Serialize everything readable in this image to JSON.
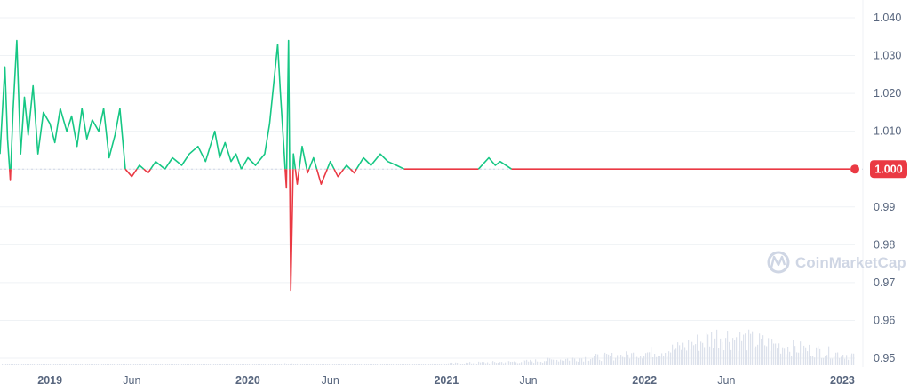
{
  "chart_data": {
    "type": "line",
    "title": "",
    "xlabel": "",
    "ylabel": "",
    "baseline": 1.0,
    "ylim": [
      0.948,
      1.042
    ],
    "y_ticks": [
      "1.040",
      "1.030",
      "1.020",
      "1.010",
      "1.000",
      "0.99",
      "0.98",
      "0.97",
      "0.96",
      "0.95"
    ],
    "y_tick_values": [
      1.04,
      1.03,
      1.02,
      1.01,
      1.0,
      0.99,
      0.98,
      0.97,
      0.96,
      0.95
    ],
    "x_ticks": [
      {
        "label": "2019",
        "date": "2019-01-01",
        "major": true
      },
      {
        "label": "Jun",
        "date": "2019-06-01",
        "major": false
      },
      {
        "label": "2020",
        "date": "2020-01-01",
        "major": true
      },
      {
        "label": "Jun",
        "date": "2020-06-01",
        "major": false
      },
      {
        "label": "2021",
        "date": "2021-01-01",
        "major": true
      },
      {
        "label": "Jun",
        "date": "2021-06-01",
        "major": false
      },
      {
        "label": "2022",
        "date": "2022-01-01",
        "major": true
      },
      {
        "label": "Jun",
        "date": "2022-06-01",
        "major": false
      },
      {
        "label": "2023",
        "date": "2023-01-01",
        "major": true
      }
    ],
    "current_price": "1.000",
    "colors": {
      "above": "#16c784",
      "below": "#ea3943",
      "volume": "#dde2ec",
      "axis_text": "#58667e"
    },
    "series": [
      {
        "x": [
          "2018-10-01",
          "2018-10-10",
          "2018-10-15",
          "2018-10-20",
          "2018-10-25",
          "2018-11-01",
          "2018-11-08",
          "2018-11-15",
          "2018-11-22",
          "2018-12-01",
          "2018-12-10",
          "2018-12-20",
          "2019-01-01",
          "2019-01-10",
          "2019-01-20",
          "2019-02-01",
          "2019-02-10",
          "2019-02-20",
          "2019-03-01",
          "2019-03-10",
          "2019-03-20",
          "2019-04-01",
          "2019-04-10",
          "2019-04-20",
          "2019-05-01",
          "2019-05-10",
          "2019-05-20",
          "2019-06-01",
          "2019-06-15",
          "2019-07-01",
          "2019-07-15",
          "2019-08-01",
          "2019-08-15",
          "2019-09-01",
          "2019-09-15",
          "2019-10-01",
          "2019-10-15",
          "2019-11-01",
          "2019-11-10",
          "2019-11-20",
          "2019-12-01",
          "2019-12-10",
          "2019-12-20",
          "2020-01-01",
          "2020-01-15",
          "2020-02-01",
          "2020-02-10",
          "2020-02-20",
          "2020-02-25",
          "2020-03-01",
          "2020-03-08",
          "2020-03-12",
          "2020-03-16",
          "2020-03-20",
          "2020-03-25",
          "2020-04-01",
          "2020-04-10",
          "2020-04-20",
          "2020-05-01",
          "2020-05-15",
          "2020-06-01",
          "2020-06-15",
          "2020-07-01",
          "2020-07-15",
          "2020-08-01",
          "2020-08-15",
          "2020-09-01",
          "2020-09-15",
          "2020-10-01",
          "2020-10-15",
          "2020-11-01",
          "2020-11-15",
          "2020-12-01",
          "2020-12-15",
          "2021-01-01",
          "2021-02-01",
          "2021-03-01",
          "2021-03-20",
          "2021-04-01",
          "2021-04-10",
          "2021-05-01",
          "2021-06-01",
          "2021-07-01",
          "2021-08-01",
          "2021-09-01",
          "2021-10-01",
          "2021-11-01",
          "2021-12-01",
          "2022-01-01",
          "2022-02-01",
          "2022-03-01",
          "2022-04-01",
          "2022-05-01",
          "2022-06-01",
          "2022-07-01",
          "2022-08-01",
          "2022-09-01",
          "2022-10-01",
          "2022-11-01",
          "2022-12-01",
          "2023-01-01",
          "2023-01-15"
        ],
        "values": [
          1.004,
          1.027,
          1.008,
          0.997,
          1.015,
          1.034,
          1.004,
          1.019,
          1.009,
          1.022,
          1.004,
          1.015,
          1.012,
          1.007,
          1.016,
          1.01,
          1.014,
          1.006,
          1.016,
          1.008,
          1.013,
          1.01,
          1.016,
          1.003,
          1.009,
          1.016,
          1.0,
          0.998,
          1.001,
          0.999,
          1.002,
          1.0,
          1.003,
          1.001,
          1.004,
          1.006,
          1.002,
          1.01,
          1.003,
          1.007,
          1.002,
          1.004,
          1.0,
          1.003,
          1.001,
          1.004,
          1.012,
          1.026,
          1.033,
          1.02,
          1.004,
          0.995,
          1.034,
          0.968,
          1.004,
          0.996,
          1.006,
          0.999,
          1.003,
          0.996,
          1.002,
          0.998,
          1.001,
          0.999,
          1.003,
          1.001,
          1.004,
          1.002,
          1.001,
          1.0,
          1.0,
          1.0,
          1.0,
          1.0,
          1.0,
          1.0,
          1.0,
          1.003,
          1.001,
          1.002,
          1.0,
          1.0,
          1.0,
          1.0,
          1.0,
          1.0,
          1.0,
          1.0,
          1.0,
          1.0,
          1.0,
          1.0,
          1.0,
          1.0,
          1.0,
          1.0,
          1.0,
          1.0,
          1.0,
          1.0,
          1.0,
          1.0
        ]
      }
    ],
    "volume": {
      "x": [
        "2018-10-01",
        "2019-06-01",
        "2020-01-01",
        "2020-03-01",
        "2020-06-01",
        "2020-12-01",
        "2021-06-01",
        "2021-12-01",
        "2022-03-01",
        "2022-05-20",
        "2022-09-01",
        "2022-12-01",
        "2023-01-15"
      ],
      "values": [
        0.01,
        0.01,
        0.02,
        0.05,
        0.02,
        0.04,
        0.12,
        0.3,
        0.5,
        0.9,
        0.6,
        0.4,
        0.3
      ]
    }
  },
  "watermark": {
    "text": "CoinMarketCap"
  }
}
